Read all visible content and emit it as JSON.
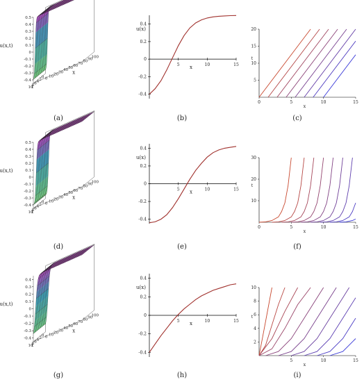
{
  "figure": {
    "panel_labels": [
      "(a)",
      "(b)",
      "(c)",
      "(d)",
      "(e)",
      "(f)",
      "(g)",
      "(h)",
      "(i)"
    ]
  },
  "colors": {
    "curve_red": "#a0302c",
    "contour_start": "#c8482e",
    "contour_end": "#3a3ad8",
    "surface_top": "#c23cc8",
    "surface_mid": "#3fa7c4",
    "surface_low": "#7fe07a",
    "mesh": "#222222"
  },
  "chart_data": [
    {
      "panel": "a",
      "type": "surface3d",
      "zlabel": "u(x,t)",
      "xlabel": "x",
      "ylabel": "t",
      "z_ticks": [
        "0.5",
        "0.4",
        "0.3",
        "0.2",
        "0.1",
        "0",
        "-0.1",
        "-0.2",
        "-0.3",
        "-0.4"
      ],
      "x_ticks": [
        "0",
        "10",
        "20",
        "30",
        "40",
        "50",
        "60",
        "70",
        "80",
        "90",
        "100"
      ],
      "t_ticks": [
        "10",
        "8",
        "6",
        "4",
        "2",
        "0"
      ],
      "zlim": [
        -0.45,
        0.5
      ],
      "kink_center": 4,
      "kink_width": 1.8
    },
    {
      "panel": "b",
      "type": "line",
      "ylabel": "u(x)",
      "xlabel": "x",
      "x_ticks": [
        "5",
        "10",
        "15"
      ],
      "y_ticks": [
        "0.4",
        "0.2",
        "0",
        "-0.2",
        "-0.4"
      ],
      "xlim": [
        0,
        15
      ],
      "ylim": [
        -0.45,
        0.5
      ],
      "x": [
        0,
        1,
        2,
        3,
        4,
        5,
        6,
        7,
        8,
        9,
        10,
        11,
        12,
        13,
        14,
        15
      ],
      "y": [
        -0.399,
        -0.337,
        -0.246,
        -0.124,
        0.015,
        0.153,
        0.269,
        0.356,
        0.413,
        0.448,
        0.469,
        0.482,
        0.489,
        0.493,
        0.496,
        0.498
      ]
    },
    {
      "panel": "c",
      "type": "contour",
      "ylabel": "t",
      "xlabel": "x",
      "x_ticks": [
        "0",
        "5",
        "10",
        "15"
      ],
      "y_ticks": [
        "20",
        "15",
        "10",
        "5"
      ],
      "xlim": [
        0,
        15
      ],
      "ylim": [
        0,
        20
      ],
      "lines": [
        {
          "x": [
            0,
            8
          ],
          "y": [
            0,
            20
          ]
        },
        {
          "x": [
            1.4,
            9.4
          ],
          "y": [
            0,
            20
          ]
        },
        {
          "x": [
            2.8,
            10.8
          ],
          "y": [
            0,
            20
          ]
        },
        {
          "x": [
            4.2,
            12.2
          ],
          "y": [
            0,
            20
          ]
        },
        {
          "x": [
            5.6,
            13.6
          ],
          "y": [
            0,
            20
          ]
        },
        {
          "x": [
            7.0,
            15.0
          ],
          "y": [
            0,
            20
          ]
        },
        {
          "x": [
            8.4,
            15.0
          ],
          "y": [
            0,
            16.5
          ]
        },
        {
          "x": [
            10.0,
            15.0
          ],
          "y": [
            0,
            12.5
          ]
        }
      ]
    },
    {
      "panel": "d",
      "type": "surface3d",
      "zlabel": "u(x,t)",
      "xlabel": "x",
      "ylabel": "t",
      "z_ticks": [
        "0.5",
        "0.4",
        "0.3",
        "0.2",
        "0.1",
        "0",
        "-0.1",
        "-0.2",
        "-0.3",
        "-0.4"
      ],
      "x_ticks": [
        "0",
        "10",
        "20",
        "30",
        "40",
        "50",
        "60",
        "70",
        "80",
        "90",
        "100"
      ],
      "t_ticks": [
        "10",
        "8",
        "6",
        "4",
        "2",
        "0"
      ],
      "zlim": [
        -0.45,
        0.5
      ],
      "kink_center": 6,
      "kink_width": 2.2
    },
    {
      "panel": "e",
      "type": "line",
      "ylabel": "u(x)",
      "xlabel": "x",
      "x_ticks": [
        "5",
        "10",
        "15"
      ],
      "y_ticks": [
        "0.4",
        "0.2",
        "0",
        "-0.2",
        "-0.4"
      ],
      "xlim": [
        0,
        15
      ],
      "ylim": [
        -0.45,
        0.45
      ],
      "x": [
        0,
        1,
        2,
        3,
        4,
        5,
        6,
        7,
        8,
        9,
        10,
        11,
        12,
        13,
        14,
        15
      ],
      "y": [
        -0.44,
        -0.43,
        -0.4,
        -0.35,
        -0.27,
        -0.17,
        -0.06,
        0.05,
        0.15,
        0.23,
        0.3,
        0.35,
        0.38,
        0.4,
        0.41,
        0.42
      ]
    },
    {
      "panel": "f",
      "type": "contour",
      "ylabel": "t",
      "xlabel": "x",
      "x_ticks": [
        "0",
        "5",
        "10",
        "15"
      ],
      "y_ticks": [
        "30",
        "20",
        "10"
      ],
      "xlim": [
        0,
        15
      ],
      "ylim": [
        0,
        30
      ],
      "lines": [
        {
          "x": [
            0,
            1,
            2,
            3,
            3.5,
            4,
            4.5,
            5
          ],
          "y": [
            0,
            0.2,
            0.8,
            2.5,
            5,
            9,
            17,
            30
          ]
        },
        {
          "x": [
            2,
            3,
            4,
            5,
            5.5,
            6,
            6.5,
            7
          ],
          "y": [
            0,
            0.2,
            0.8,
            2.5,
            5,
            9,
            17,
            30
          ]
        },
        {
          "x": [
            3.5,
            4.5,
            5.5,
            6.5,
            7,
            7.5,
            8,
            8.5
          ],
          "y": [
            0,
            0.2,
            0.8,
            2.5,
            5,
            9,
            17,
            30
          ]
        },
        {
          "x": [
            5,
            6,
            7,
            8,
            8.5,
            9,
            9.5,
            10
          ],
          "y": [
            0,
            0.2,
            0.8,
            2.5,
            5,
            9,
            17,
            30
          ]
        },
        {
          "x": [
            6.5,
            7.5,
            8.5,
            9.5,
            10,
            10.5,
            11,
            11.5
          ],
          "y": [
            0,
            0.2,
            0.8,
            2.5,
            5,
            9,
            17,
            30
          ]
        },
        {
          "x": [
            8,
            9,
            10,
            11,
            11.5,
            12,
            12.5,
            13
          ],
          "y": [
            0,
            0.2,
            0.8,
            2.5,
            5,
            9,
            17,
            30
          ]
        },
        {
          "x": [
            9.5,
            10.5,
            11.5,
            12.5,
            13,
            13.5,
            14,
            14.5
          ],
          "y": [
            0,
            0.2,
            0.8,
            2.5,
            5,
            9,
            17,
            30
          ]
        },
        {
          "x": [
            11,
            12,
            13,
            14,
            14.5,
            15
          ],
          "y": [
            0,
            0.2,
            0.8,
            2.5,
            5,
            9
          ]
        },
        {
          "x": [
            12.5,
            13.5,
            14.5,
            15
          ],
          "y": [
            0,
            0.2,
            0.8,
            1.5
          ]
        }
      ]
    },
    {
      "panel": "g",
      "type": "surface3d",
      "zlabel": "u(x,t)",
      "xlabel": "x",
      "ylabel": "t",
      "z_ticks": [
        "0.4",
        "0.3",
        "0.2",
        "0.1",
        "0",
        "-0.1",
        "-0.2",
        "-0.3",
        "-0.4"
      ],
      "x_ticks": [
        "0",
        "10",
        "20",
        "30",
        "40",
        "50",
        "60",
        "70",
        "80",
        "90",
        "100"
      ],
      "t_ticks": [
        "10",
        "8",
        "6",
        "4",
        "2",
        "0"
      ],
      "zlim": [
        -0.45,
        0.45
      ],
      "kink_center": 5,
      "kink_width": 4.0
    },
    {
      "panel": "h",
      "type": "line",
      "ylabel": "u(x)",
      "xlabel": "x",
      "x_ticks": [
        "5",
        "10",
        "15"
      ],
      "y_ticks": [
        "0.4",
        "0.2",
        "0",
        "-0.2",
        "-0.4"
      ],
      "xlim": [
        0,
        15
      ],
      "ylim": [
        -0.45,
        0.45
      ],
      "x": [
        0,
        1,
        2,
        3,
        4,
        5,
        6,
        7,
        8,
        9,
        10,
        11,
        12,
        13,
        14,
        15
      ],
      "y": [
        -0.4,
        -0.31,
        -0.22,
        -0.14,
        -0.06,
        0.01,
        0.07,
        0.12,
        0.17,
        0.21,
        0.24,
        0.27,
        0.29,
        0.31,
        0.33,
        0.34
      ]
    },
    {
      "panel": "i",
      "type": "contour",
      "ylabel": "t",
      "xlabel": "x",
      "x_ticks": [
        "5",
        "10",
        "15"
      ],
      "y_ticks": [
        "10",
        "8",
        "6",
        "4",
        "2"
      ],
      "xlim": [
        0,
        15
      ],
      "ylim": [
        0,
        10
      ],
      "lines": [
        {
          "x": [
            0,
            1,
            2
          ],
          "y": [
            0,
            5,
            10
          ]
        },
        {
          "x": [
            0,
            1,
            2,
            3,
            4
          ],
          "y": [
            0,
            1.5,
            4.5,
            7.5,
            10
          ]
        },
        {
          "x": [
            0,
            2,
            4,
            6
          ],
          "y": [
            0,
            2.5,
            6.5,
            10
          ]
        },
        {
          "x": [
            0,
            2,
            4,
            6,
            8
          ],
          "y": [
            0,
            1,
            4,
            7.5,
            10
          ]
        },
        {
          "x": [
            1,
            3,
            5,
            7,
            9,
            10
          ],
          "y": [
            0,
            0.6,
            2.5,
            5.5,
            8.5,
            10
          ]
        },
        {
          "x": [
            3,
            5,
            7,
            9,
            11,
            12
          ],
          "y": [
            0,
            0.6,
            2.5,
            5.5,
            8.5,
            10
          ]
        },
        {
          "x": [
            5,
            7,
            9,
            11,
            13,
            14
          ],
          "y": [
            0,
            0.6,
            2.5,
            5.5,
            8.5,
            10
          ]
        },
        {
          "x": [
            7,
            9,
            11,
            13,
            15
          ],
          "y": [
            0,
            0.6,
            2.5,
            5.5,
            8.5
          ]
        },
        {
          "x": [
            9,
            11,
            13,
            15
          ],
          "y": [
            0,
            0.6,
            2.5,
            5.5
          ]
        },
        {
          "x": [
            11,
            13,
            15
          ],
          "y": [
            0,
            0.6,
            2.5
          ]
        }
      ]
    }
  ]
}
